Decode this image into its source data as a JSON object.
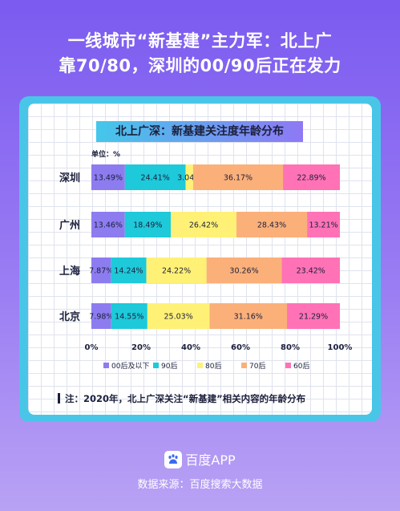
{
  "headline": {
    "line1": "一线城市“新基建”主力军：北上广",
    "line2": "靠70/80，深圳的00/90后正在发力"
  },
  "footnote": "注：2020年，北上广深关注“新基建”相关内容的年龄分布",
  "brand": {
    "name": "百度APP",
    "icon": "baidu-paw-icon"
  },
  "source": "数据来源：百度搜索大数据",
  "chart_data": {
    "type": "bar",
    "orientation": "horizontal",
    "stacked": true,
    "title": "北上广深：新基建关注度年龄分布",
    "unit_label": "单位：%",
    "categories": [
      "深圳",
      "广州",
      "上海",
      "北京"
    ],
    "series": [
      {
        "name": "00后及以下",
        "color": "#8d7cf0",
        "values": [
          13.49,
          13.46,
          7.87,
          7.98
        ],
        "labels": [
          "13.49%",
          "13.46%",
          "7.87%",
          "7.98%"
        ]
      },
      {
        "name": "90后",
        "color": "#1ec9d9",
        "values": [
          24.41,
          18.49,
          14.24,
          14.55
        ],
        "labels": [
          "24.41%",
          "18.49%",
          "14.24%",
          "14.55%"
        ]
      },
      {
        "name": "80后",
        "color": "#fff176",
        "values": [
          3.04,
          26.42,
          24.22,
          25.03
        ],
        "labels": [
          "3.04%",
          "26.42%",
          "24.22%",
          "25.03%"
        ]
      },
      {
        "name": "70后",
        "color": "#fbb07a",
        "values": [
          36.17,
          28.43,
          30.26,
          31.16
        ],
        "labels": [
          "36.17%",
          "28.43%",
          "30.26%",
          "31.16%"
        ]
      },
      {
        "name": "60后",
        "color": "#ff72b6",
        "values": [
          22.89,
          13.21,
          23.42,
          21.29
        ],
        "labels": [
          "22.89%",
          "13.21%",
          "23.42%",
          "21.29%"
        ]
      }
    ],
    "x_ticks": [
      "0%",
      "20%",
      "40%",
      "60%",
      "80%",
      "100%"
    ],
    "xlim": [
      0,
      100
    ],
    "legend_position": "bottom",
    "grid": true
  }
}
